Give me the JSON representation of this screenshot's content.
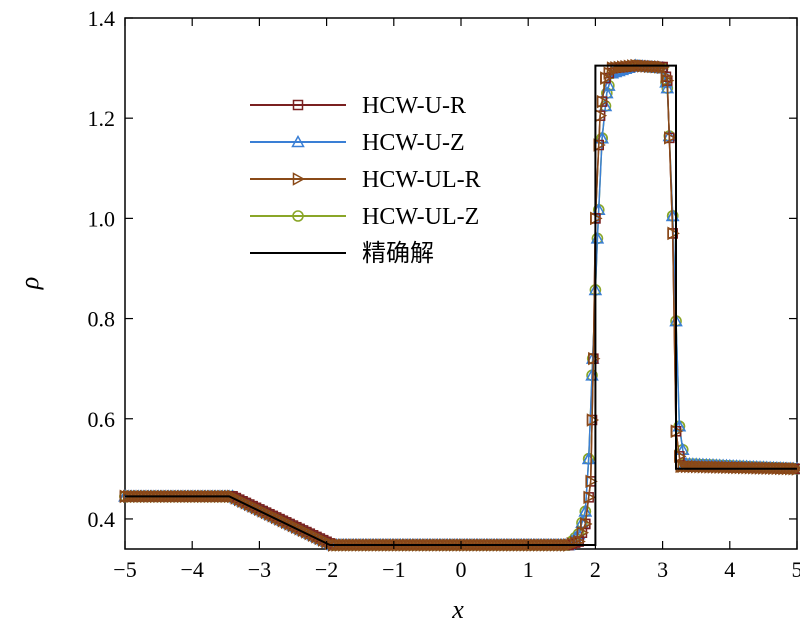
{
  "chart_data": {
    "type": "line",
    "xlabel": "x",
    "ylabel": "ρ",
    "xlim": [
      -5,
      5
    ],
    "ylim": [
      0.34,
      1.4
    ],
    "xticks": [
      -5,
      -4,
      -3,
      -2,
      -1,
      0,
      1,
      2,
      3,
      4,
      5
    ],
    "xtick_labels": [
      "−5",
      "−4",
      "−3",
      "−2",
      "−1",
      "0",
      "1",
      "2",
      "3",
      "4",
      "5"
    ],
    "yticks": [
      0.4,
      0.6,
      0.8,
      1.0,
      1.2,
      1.4
    ],
    "ytick_labels": [
      "0.4",
      "0.6",
      "0.8",
      "1.0",
      "1.2",
      "1.4"
    ],
    "legend_position": "upper-left",
    "series": [
      {
        "name": "HCW-U-R",
        "color": "#7a2020",
        "marker": "square",
        "points": [
          [
            -5,
            0.445
          ],
          [
            -3.4,
            0.445
          ],
          [
            -1.9,
            0.348
          ],
          [
            1.6,
            0.348
          ],
          [
            1.75,
            0.355
          ],
          [
            1.85,
            0.39
          ],
          [
            1.93,
            0.475
          ],
          [
            1.97,
            0.72
          ],
          [
            2.0,
            1.0
          ],
          [
            2.07,
            1.205
          ],
          [
            2.15,
            1.28
          ],
          [
            2.25,
            1.3
          ],
          [
            2.6,
            1.305
          ],
          [
            3.0,
            1.302
          ],
          [
            3.07,
            1.275
          ],
          [
            3.15,
            0.97
          ],
          [
            3.2,
            0.575
          ],
          [
            3.27,
            0.505
          ],
          [
            5,
            0.5
          ]
        ]
      },
      {
        "name": "HCW-U-Z",
        "color": "#3a7fd5",
        "marker": "triangle",
        "points": [
          [
            -5,
            0.445
          ],
          [
            -3.4,
            0.445
          ],
          [
            -1.9,
            0.348
          ],
          [
            1.6,
            0.348
          ],
          [
            1.75,
            0.37
          ],
          [
            1.85,
            0.415
          ],
          [
            1.9,
            0.52
          ],
          [
            1.96,
            0.72
          ],
          [
            2.03,
            0.96
          ],
          [
            2.1,
            1.16
          ],
          [
            2.17,
            1.25
          ],
          [
            2.25,
            1.29
          ],
          [
            2.6,
            1.305
          ],
          [
            3.0,
            1.3
          ],
          [
            3.07,
            1.26
          ],
          [
            3.15,
            1.005
          ],
          [
            3.25,
            0.585
          ],
          [
            3.33,
            0.51
          ],
          [
            5,
            0.5
          ]
        ]
      },
      {
        "name": "HCW-UL-R",
        "color": "#8a4a18",
        "marker": "triangle-right",
        "points": [
          [
            -5,
            0.445
          ],
          [
            -3.4,
            0.445
          ],
          [
            -1.9,
            0.348
          ],
          [
            1.6,
            0.348
          ],
          [
            1.75,
            0.355
          ],
          [
            1.85,
            0.39
          ],
          [
            1.93,
            0.475
          ],
          [
            1.97,
            0.72
          ],
          [
            2.0,
            1.0
          ],
          [
            2.07,
            1.205
          ],
          [
            2.15,
            1.28
          ],
          [
            2.25,
            1.3
          ],
          [
            2.6,
            1.305
          ],
          [
            3.0,
            1.302
          ],
          [
            3.07,
            1.275
          ],
          [
            3.15,
            0.97
          ],
          [
            3.2,
            0.575
          ],
          [
            3.27,
            0.505
          ],
          [
            5,
            0.5
          ]
        ]
      },
      {
        "name": "HCW-UL-Z",
        "color": "#8aa628",
        "marker": "circle",
        "points": [
          [
            -5,
            0.445
          ],
          [
            -3.4,
            0.445
          ],
          [
            -1.9,
            0.348
          ],
          [
            1.6,
            0.348
          ],
          [
            1.75,
            0.37
          ],
          [
            1.85,
            0.415
          ],
          [
            1.9,
            0.52
          ],
          [
            1.96,
            0.72
          ],
          [
            2.03,
            0.96
          ],
          [
            2.1,
            1.16
          ],
          [
            2.17,
            1.25
          ],
          [
            2.25,
            1.29
          ],
          [
            2.6,
            1.305
          ],
          [
            3.0,
            1.3
          ],
          [
            3.07,
            1.26
          ],
          [
            3.15,
            1.005
          ],
          [
            3.25,
            0.585
          ],
          [
            3.33,
            0.51
          ],
          [
            5,
            0.5
          ]
        ]
      },
      {
        "name": "精确解",
        "color": "#000000",
        "marker": "none",
        "points": [
          [
            -5,
            0.445
          ],
          [
            -3.45,
            0.445
          ],
          [
            -1.95,
            0.348
          ],
          [
            2.0,
            0.348
          ],
          [
            2.0,
            1.305
          ],
          [
            3.2,
            1.305
          ],
          [
            3.2,
            0.5
          ],
          [
            5,
            0.5
          ]
        ]
      }
    ]
  }
}
